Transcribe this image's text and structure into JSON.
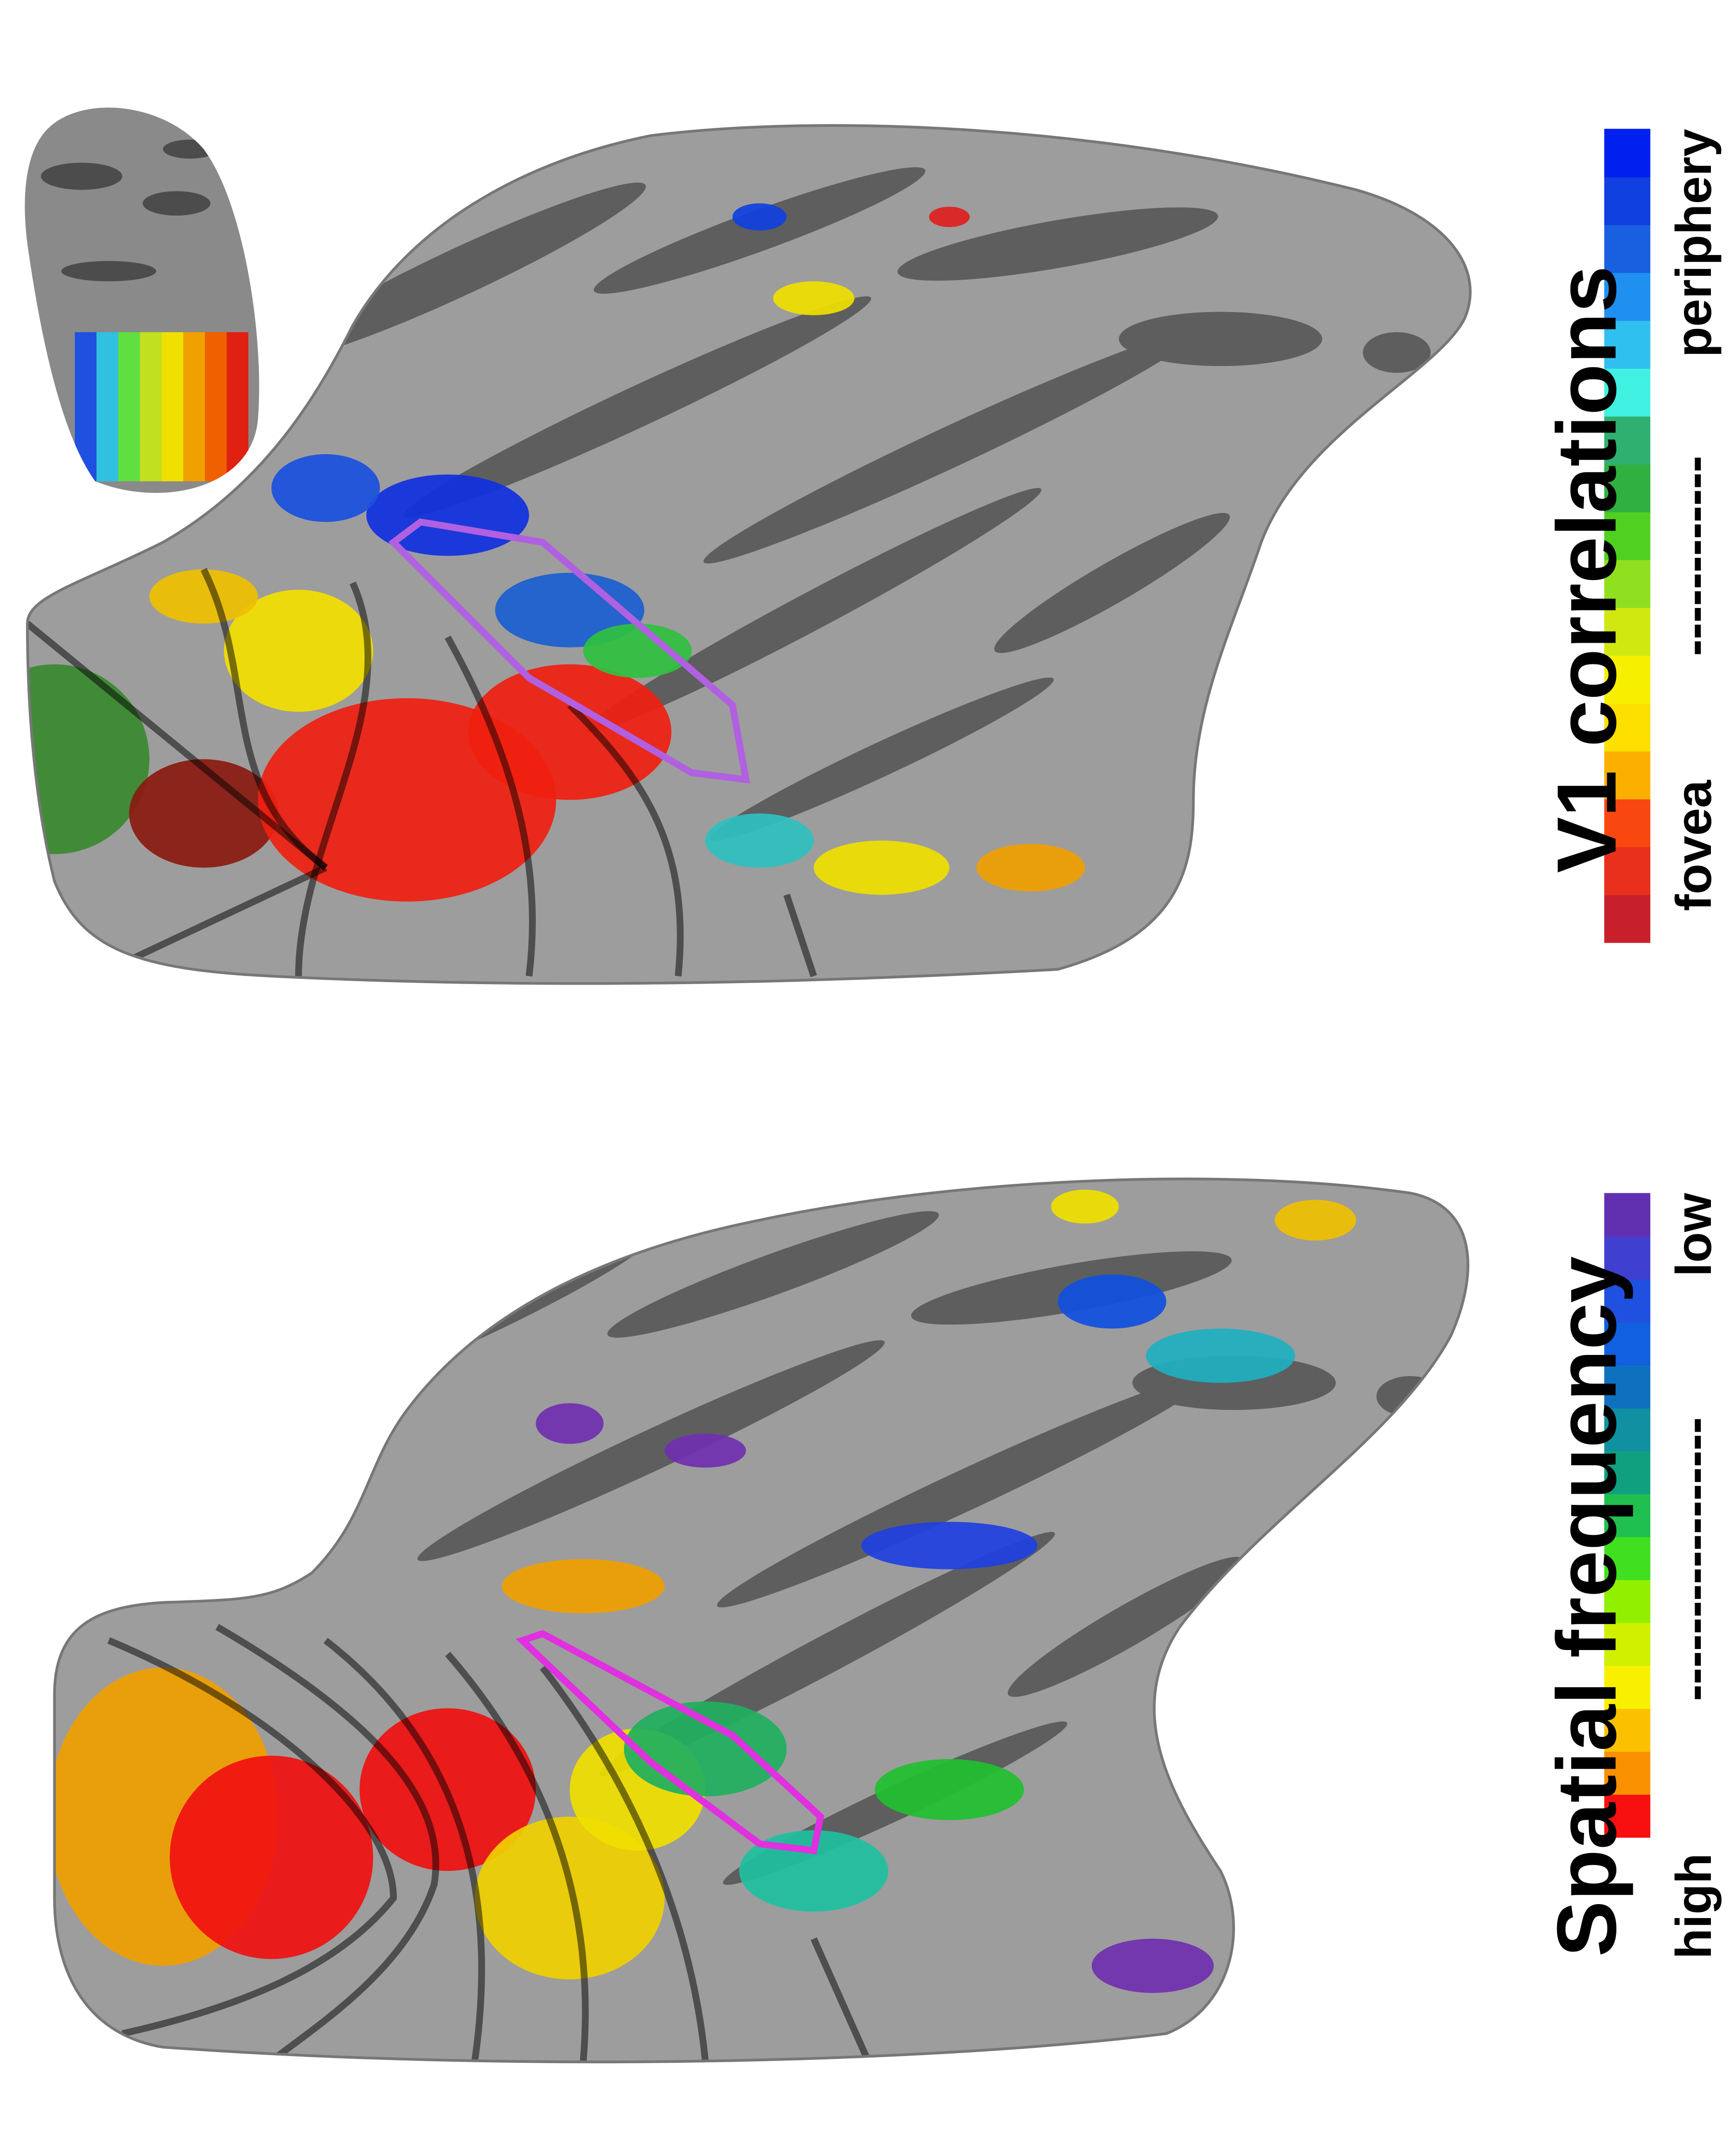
{
  "panels": [
    {
      "title": "V1 correlations",
      "scale_low": "fovea",
      "scale_dashes": "------------",
      "scale_high": "periphery"
    },
    {
      "title": "Spatial frequency",
      "scale_low": "high",
      "scale_dashes": "-----------------",
      "scale_high": "low"
    }
  ]
}
